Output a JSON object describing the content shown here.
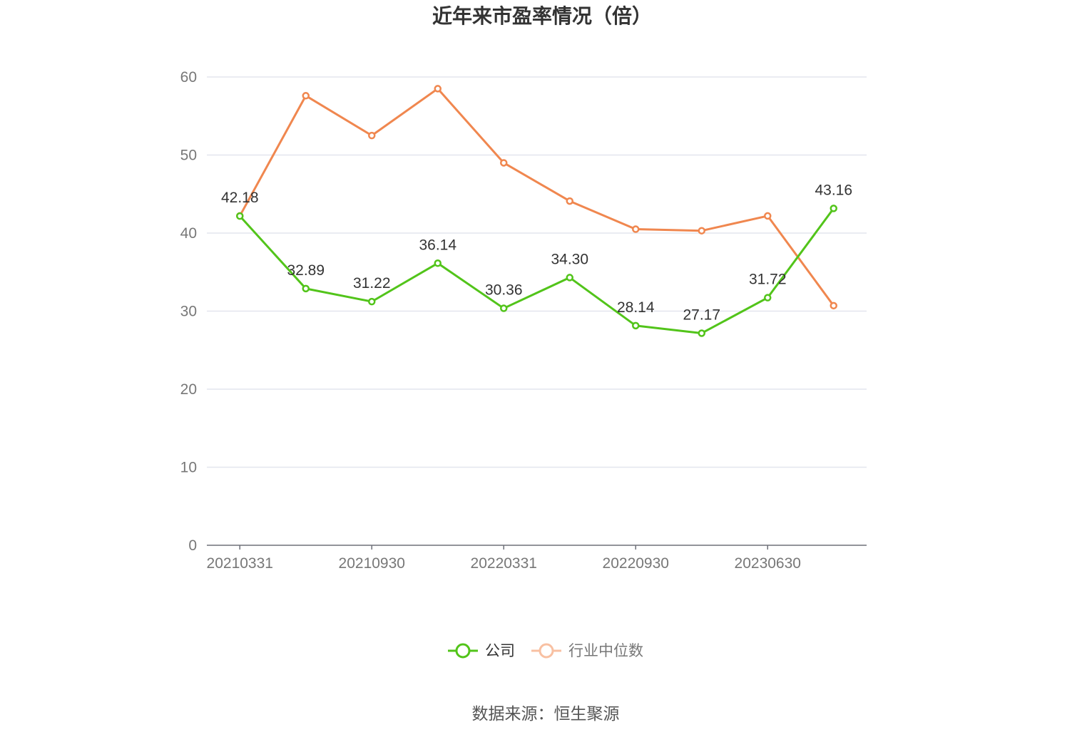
{
  "chart_data": {
    "type": "line",
    "title": "近年来市盈率情况（倍）",
    "xlabel": "",
    "ylabel": "",
    "x": [
      "20210331",
      "",
      "20210930",
      "",
      "20220331",
      "",
      "20220930",
      "",
      "20230630",
      ""
    ],
    "x_tick_labels": [
      "20210331",
      "20210930",
      "20220331",
      "20220930",
      "20230630"
    ],
    "ylim": [
      0,
      60
    ],
    "y_ticks": [
      0,
      10,
      20,
      30,
      40,
      50,
      60
    ],
    "grid": true,
    "legend_position": "bottom-center",
    "series": [
      {
        "name": "公司",
        "color": "#52c41a",
        "values": [
          42.18,
          32.89,
          31.22,
          36.14,
          30.36,
          34.3,
          28.14,
          27.17,
          31.72,
          43.16
        ],
        "labels": [
          "42.18",
          "32.89",
          "31.22",
          "36.14",
          "30.36",
          "34.30",
          "28.14",
          "27.17",
          "31.72",
          "43.16"
        ]
      },
      {
        "name": "行业中位数",
        "color": "#f0874f",
        "values": [
          42.2,
          57.6,
          52.5,
          58.5,
          49.0,
          44.1,
          40.5,
          40.3,
          42.2,
          30.7
        ]
      }
    ],
    "source": "数据来源：恒生聚源"
  }
}
